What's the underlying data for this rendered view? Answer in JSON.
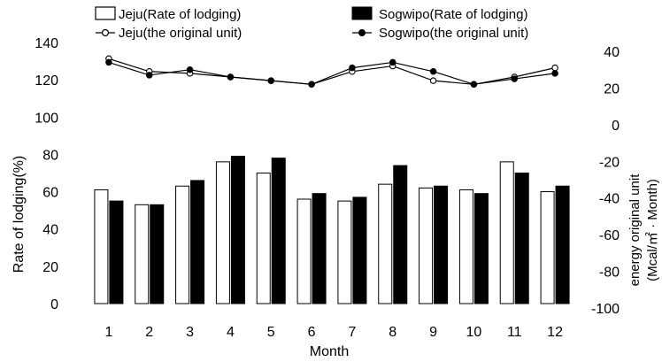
{
  "chart_data": {
    "type": "bar",
    "categories": [
      "1",
      "2",
      "3",
      "4",
      "5",
      "6",
      "7",
      "8",
      "9",
      "10",
      "11",
      "12"
    ],
    "xlabel": "Month",
    "ylabel_left": "Rate of lodging(%)",
    "ylabel_right_line1": "energy original unit",
    "ylabel_right_line2": "(Mcal/㎡ · Month)",
    "ylim_left": [
      0,
      140
    ],
    "yticks_left": [
      0,
      20,
      40,
      60,
      80,
      100,
      120,
      140
    ],
    "ylim_right": [
      -100,
      40
    ],
    "yticks_right": [
      -100,
      -80,
      -60,
      -40,
      -20,
      0,
      20,
      40
    ],
    "grid": false,
    "legend_position": "top",
    "series": [
      {
        "name": "Jeju(Rate of lodging)",
        "kind": "bar",
        "axis": "left",
        "fill": "#ffffff",
        "values": [
          61,
          53,
          63,
          76,
          70,
          56,
          55,
          64,
          62,
          61,
          76,
          60
        ]
      },
      {
        "name": "Sogwipo(Rate of lodging)",
        "kind": "bar",
        "axis": "left",
        "fill": "#000000",
        "values": [
          55,
          53,
          66,
          79,
          78,
          59,
          57,
          74,
          63,
          59,
          70,
          63
        ]
      },
      {
        "name": "Jeju(the original unit)",
        "kind": "line",
        "axis": "right",
        "marker": "open-circle",
        "values": [
          36,
          29,
          28,
          26,
          24,
          22,
          29,
          32,
          24,
          22,
          26,
          31
        ]
      },
      {
        "name": "Sogwipo(the original unit)",
        "kind": "line",
        "axis": "right",
        "marker": "filled-circle",
        "values": [
          34,
          27,
          30,
          26,
          24,
          22,
          31,
          34,
          29,
          22,
          25,
          28
        ]
      }
    ]
  }
}
